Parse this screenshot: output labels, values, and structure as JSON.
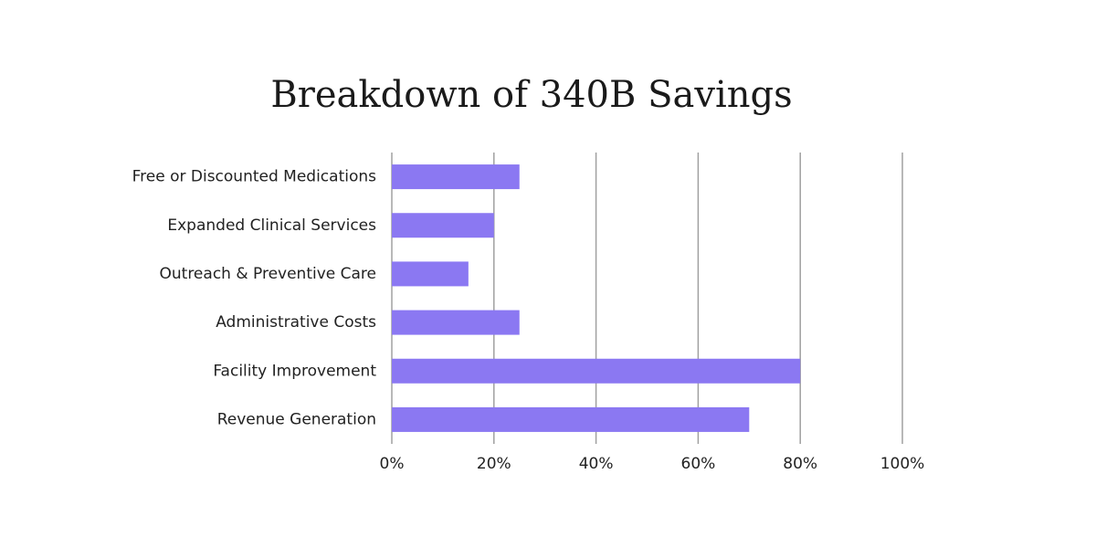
{
  "chart_data": {
    "type": "bar",
    "title": "Breakdown of 340B Savings",
    "categories": [
      "Free or Discounted Medications",
      "Expanded Clinical Services",
      "Outreach & Preventive Care",
      "Administrative Costs",
      "Facility Improvement",
      "Revenue Generation"
    ],
    "values": [
      25,
      20,
      15,
      25,
      80,
      70
    ],
    "color": "#8b78f2",
    "xlim": [
      0,
      100
    ],
    "xticks": [
      {
        "value": 0,
        "label": "0%"
      },
      {
        "value": 20,
        "label": "20%"
      },
      {
        "value": 40,
        "label": "40%"
      },
      {
        "value": 60,
        "label": "60%"
      },
      {
        "value": 80,
        "label": "80%"
      },
      {
        "value": 100,
        "label": "100%"
      }
    ],
    "grid": true
  }
}
